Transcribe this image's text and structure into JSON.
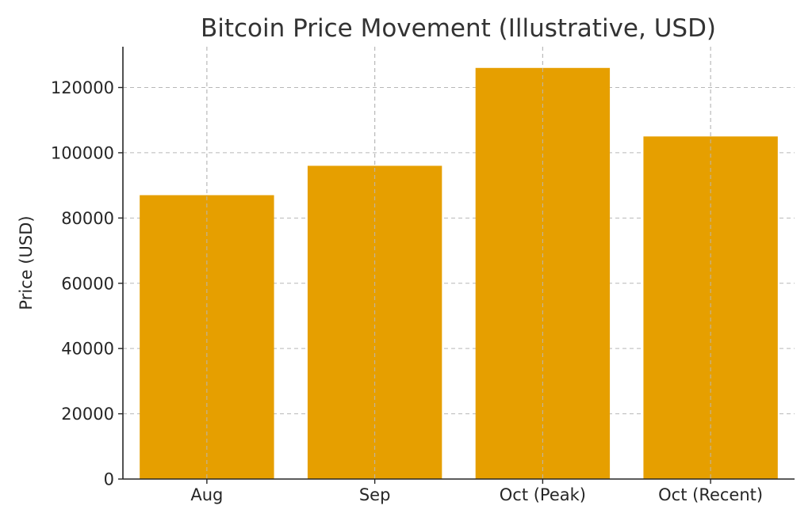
{
  "chart_data": {
    "type": "bar",
    "title": "Bitcoin Price Movement (Illustrative, USD)",
    "xlabel": "",
    "ylabel": "Price (USD)",
    "categories": [
      "Aug",
      "Sep",
      "Oct (Peak)",
      "Oct (Recent)"
    ],
    "values": [
      87000,
      96000,
      126000,
      105000
    ],
    "ylim": [
      0,
      132500
    ],
    "yticks": [
      0,
      20000,
      40000,
      60000,
      80000,
      100000,
      120000
    ],
    "grid": true,
    "legend": "none",
    "colors": {
      "bar": "#E69F00"
    }
  }
}
